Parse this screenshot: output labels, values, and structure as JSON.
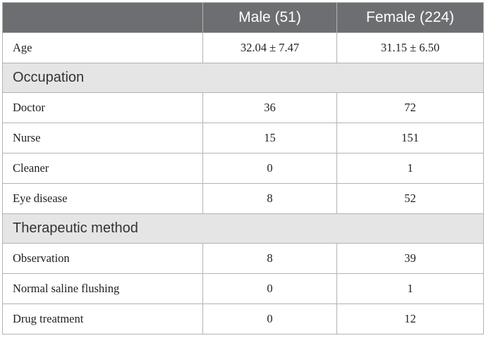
{
  "table": {
    "headers": [
      "",
      "Male (51)",
      "Female (224)"
    ],
    "age": {
      "label": "Age",
      "male": "32.04 ± 7.47",
      "female": "31.15 ± 6.50"
    },
    "sections": [
      {
        "title": "Occupation",
        "rows": [
          {
            "label": "Doctor",
            "male": "36",
            "female": "72"
          },
          {
            "label": "Nurse",
            "male": "15",
            "female": "151"
          },
          {
            "label": "Cleaner",
            "male": "0",
            "female": "1"
          },
          {
            "label": "Eye disease",
            "male": "8",
            "female": "52"
          }
        ]
      },
      {
        "title": "Therapeutic method",
        "rows": [
          {
            "label": "Observation",
            "male": "8",
            "female": "39"
          },
          {
            "label": "Normal saline flushing",
            "male": "0",
            "female": "1"
          },
          {
            "label": "Drug treatment",
            "male": "0",
            "female": "12"
          }
        ]
      }
    ]
  }
}
